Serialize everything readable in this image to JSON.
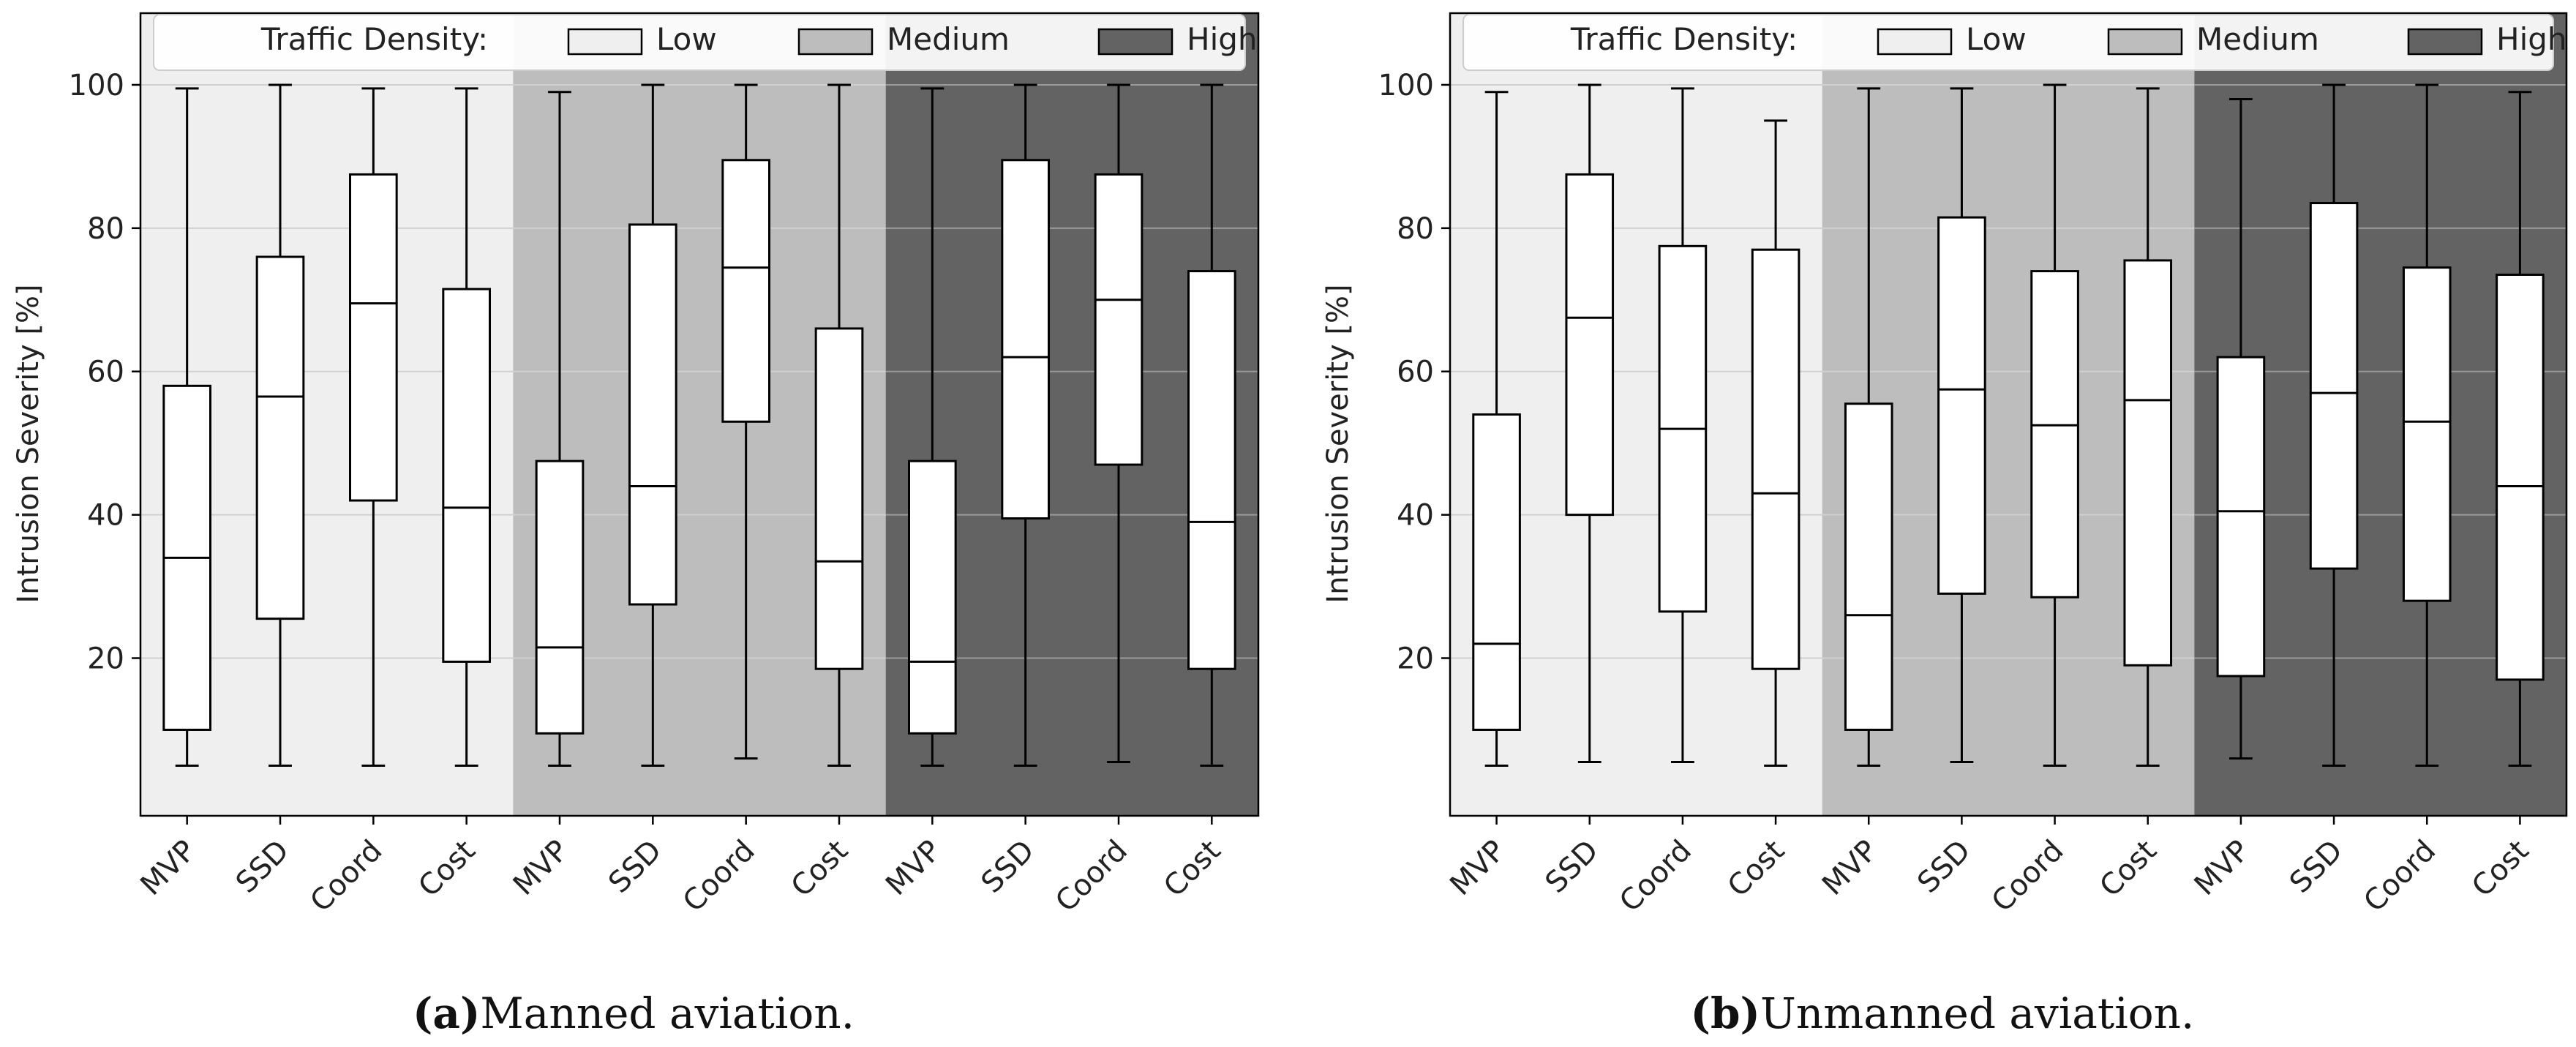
{
  "figure": {
    "colors": {
      "low_bg": "#efefef",
      "medium_bg": "#bdbdbd",
      "high_bg": "#636363",
      "grid_light": "#d0d0d0",
      "grid_dark": "#9a9a9a",
      "axis": "#000000",
      "box_fill": "#ffffff"
    }
  },
  "chart_data": [
    {
      "type": "box",
      "caption_letter": "(a)",
      "caption_text": "Manned aviation.",
      "ylabel": "Intrusion Severity [%]",
      "yticks": [
        "20",
        "40",
        "60",
        "80",
        "100"
      ],
      "ylim": [
        -2,
        110
      ],
      "legend": {
        "title": "Traffic Density:",
        "entries": [
          {
            "label": "Low",
            "color": "#efefef"
          },
          {
            "label": "Medium",
            "color": "#bdbdbd"
          },
          {
            "label": "High",
            "color": "#636363"
          }
        ],
        "position": "top"
      },
      "groups": [
        "Low",
        "Medium",
        "High"
      ],
      "categories": [
        "MVP",
        "SSD",
        "Coord",
        "Cost",
        "MVP",
        "SSD",
        "Coord",
        "Cost",
        "MVP",
        "SSD",
        "Coord",
        "Cost"
      ],
      "boxes": [
        {
          "whislo": 5,
          "q1": 10,
          "med": 34,
          "q3": 58,
          "whishi": 99.5
        },
        {
          "whislo": 5,
          "q1": 25.5,
          "med": 56.5,
          "q3": 76,
          "whishi": 100
        },
        {
          "whislo": 5,
          "q1": 42,
          "med": 69.5,
          "q3": 87.5,
          "whishi": 99.5
        },
        {
          "whislo": 5,
          "q1": 19.5,
          "med": 41,
          "q3": 71.5,
          "whishi": 99.5
        },
        {
          "whislo": 5,
          "q1": 9.5,
          "med": 21.5,
          "q3": 47.5,
          "whishi": 99
        },
        {
          "whislo": 5,
          "q1": 27.5,
          "med": 44,
          "q3": 80.5,
          "whishi": 100
        },
        {
          "whislo": 6,
          "q1": 53,
          "med": 74.5,
          "q3": 89.5,
          "whishi": 100
        },
        {
          "whislo": 5,
          "q1": 18.5,
          "med": 33.5,
          "q3": 66,
          "whishi": 100
        },
        {
          "whislo": 5,
          "q1": 9.5,
          "med": 19.5,
          "q3": 47.5,
          "whishi": 99.5
        },
        {
          "whislo": 5,
          "q1": 39.5,
          "med": 62,
          "q3": 89.5,
          "whishi": 100
        },
        {
          "whislo": 5.5,
          "q1": 47,
          "med": 70,
          "q3": 87.5,
          "whishi": 100
        },
        {
          "whislo": 5,
          "q1": 18.5,
          "med": 39,
          "q3": 74,
          "whishi": 100
        }
      ]
    },
    {
      "type": "box",
      "caption_letter": "(b)",
      "caption_text": "Unmanned aviation.",
      "ylabel": "Intrusion Severity [%]",
      "yticks": [
        "20",
        "40",
        "60",
        "80",
        "100"
      ],
      "ylim": [
        -2,
        110
      ],
      "legend": {
        "title": "Traffic Density:",
        "entries": [
          {
            "label": "Low",
            "color": "#efefef"
          },
          {
            "label": "Medium",
            "color": "#bdbdbd"
          },
          {
            "label": "High",
            "color": "#636363"
          }
        ],
        "position": "top"
      },
      "groups": [
        "Low",
        "Medium",
        "High"
      ],
      "categories": [
        "MVP",
        "SSD",
        "Coord",
        "Cost",
        "MVP",
        "SSD",
        "Coord",
        "Cost",
        "MVP",
        "SSD",
        "Coord",
        "Cost"
      ],
      "boxes": [
        {
          "whislo": 5,
          "q1": 10,
          "med": 22,
          "q3": 54,
          "whishi": 99
        },
        {
          "whislo": 5.5,
          "q1": 40,
          "med": 67.5,
          "q3": 87.5,
          "whishi": 100
        },
        {
          "whislo": 5.5,
          "q1": 26.5,
          "med": 52,
          "q3": 77.5,
          "whishi": 99.5
        },
        {
          "whislo": 5,
          "q1": 18.5,
          "med": 43,
          "q3": 77,
          "whishi": 95
        },
        {
          "whislo": 5,
          "q1": 10,
          "med": 26,
          "q3": 55.5,
          "whishi": 99.5
        },
        {
          "whislo": 5.5,
          "q1": 29,
          "med": 57.5,
          "q3": 81.5,
          "whishi": 99.5
        },
        {
          "whislo": 5,
          "q1": 28.5,
          "med": 52.5,
          "q3": 74,
          "whishi": 100
        },
        {
          "whislo": 5,
          "q1": 19,
          "med": 56,
          "q3": 75.5,
          "whishi": 99.5
        },
        {
          "whislo": 6,
          "q1": 17.5,
          "med": 40.5,
          "q3": 62,
          "whishi": 98
        },
        {
          "whislo": 5,
          "q1": 32.5,
          "med": 57,
          "q3": 83.5,
          "whishi": 100
        },
        {
          "whislo": 5,
          "q1": 28,
          "med": 53,
          "q3": 74.5,
          "whishi": 100
        },
        {
          "whislo": 5,
          "q1": 17,
          "med": 44,
          "q3": 73.5,
          "whishi": 99
        }
      ]
    }
  ]
}
